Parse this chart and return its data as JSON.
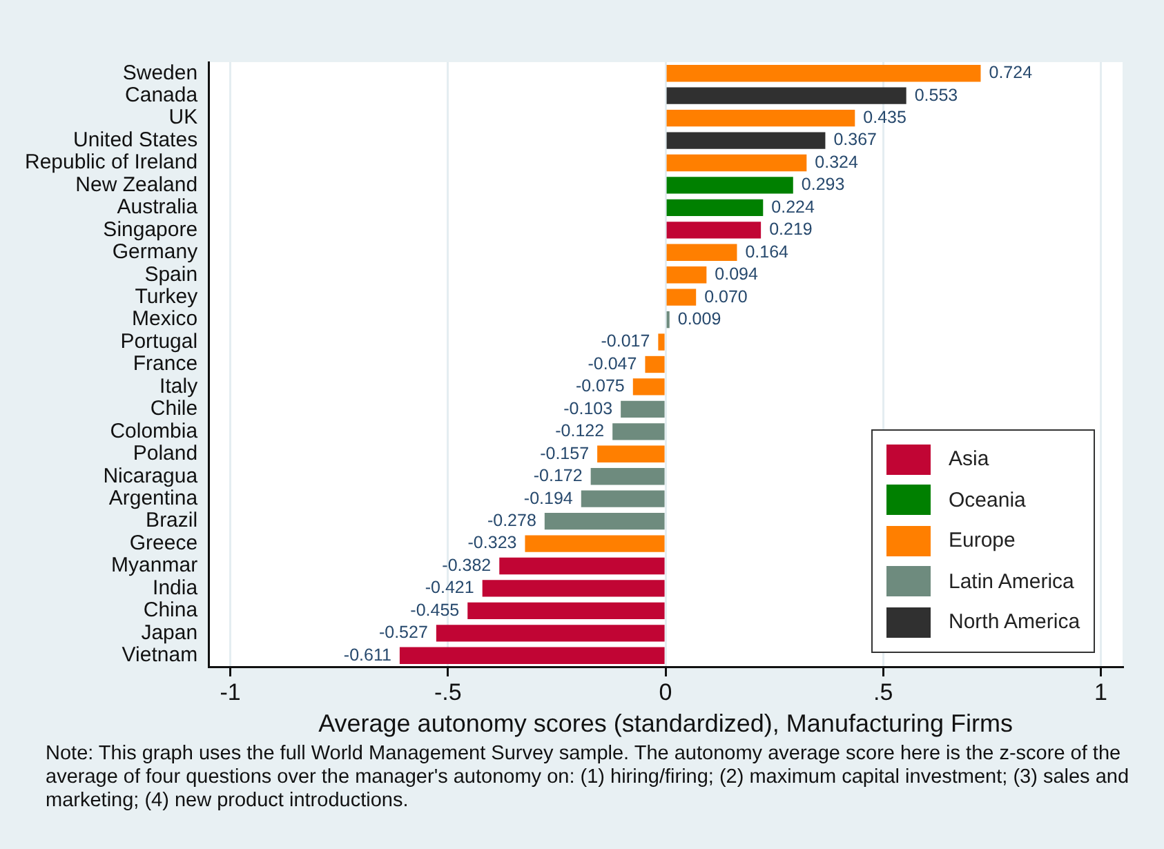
{
  "chart_data": {
    "type": "bar",
    "orientation": "horizontal",
    "stacked": true,
    "xlabel": "Average autonomy scores (standardized), Manufacturing Firms",
    "annotations": [
      "Note: This graph uses the full World Management Survey sample. The autonomy average score here is the z-score of the average of four questions over the manager's autonomy on: (1) hiring/firing; (2) maximum capital investment; (3) sales and marketing; (4) new product introductions."
    ],
    "categories": [
      "Sweden",
      "Canada",
      "UK",
      "United States",
      "Republic of Ireland",
      "New Zealand",
      "Australia",
      "Singapore",
      "Germany",
      "Spain",
      "Turkey",
      "Mexico",
      "Portugal",
      "France",
      "Italy",
      "Chile",
      "Colombia",
      "Poland",
      "Nicaragua",
      "Argentina",
      "Brazil",
      "Greece",
      "Myanmar",
      "India",
      "China",
      "Japan",
      "Vietnam"
    ],
    "series": [
      {
        "name": "Asia",
        "color": "#c10534",
        "values": [
          null,
          null,
          null,
          null,
          null,
          null,
          null,
          0.219,
          null,
          null,
          null,
          null,
          null,
          null,
          null,
          null,
          null,
          null,
          null,
          null,
          null,
          null,
          -0.382,
          -0.421,
          -0.455,
          -0.527,
          -0.611
        ],
        "value_labels": [
          null,
          null,
          null,
          null,
          null,
          null,
          null,
          "0.219",
          null,
          null,
          null,
          null,
          null,
          null,
          null,
          null,
          null,
          null,
          null,
          null,
          null,
          null,
          "-0.382",
          "-0.421",
          "-0.455",
          "-0.527",
          "-0.611"
        ]
      },
      {
        "name": "Oceania",
        "color": "#008000",
        "values": [
          null,
          null,
          null,
          null,
          null,
          0.293,
          0.224,
          null,
          null,
          null,
          null,
          null,
          null,
          null,
          null,
          null,
          null,
          null,
          null,
          null,
          null,
          null,
          null,
          null,
          null,
          null,
          null
        ],
        "value_labels": [
          null,
          null,
          null,
          null,
          null,
          "0.293",
          "0.224",
          null,
          null,
          null,
          null,
          null,
          null,
          null,
          null,
          null,
          null,
          null,
          null,
          null,
          null,
          null,
          null,
          null,
          null,
          null,
          null
        ]
      },
      {
        "name": "Europe",
        "color": "#ff7f00",
        "values": [
          0.724,
          null,
          0.435,
          null,
          0.324,
          null,
          null,
          null,
          0.164,
          0.094,
          0.07,
          null,
          -0.017,
          -0.047,
          -0.075,
          null,
          null,
          -0.157,
          null,
          null,
          null,
          -0.323,
          null,
          null,
          null,
          null,
          null
        ],
        "value_labels": [
          "0.724",
          null,
          "0.435",
          null,
          "0.324",
          null,
          null,
          null,
          "0.164",
          "0.094",
          "0.070",
          null,
          "-0.017",
          "-0.047",
          "-0.075",
          null,
          null,
          "-0.157",
          null,
          null,
          null,
          "-0.323",
          null,
          null,
          null,
          null,
          null
        ]
      },
      {
        "name": "Latin America",
        "color": "#6e8b7e",
        "values": [
          null,
          null,
          null,
          null,
          null,
          null,
          null,
          null,
          null,
          null,
          null,
          0.009,
          null,
          null,
          null,
          -0.103,
          -0.122,
          null,
          -0.172,
          -0.194,
          -0.278,
          null,
          null,
          null,
          null,
          null,
          null
        ],
        "value_labels": [
          null,
          null,
          null,
          null,
          null,
          null,
          null,
          null,
          null,
          null,
          null,
          "0.009",
          null,
          null,
          null,
          "-0.103",
          "-0.122",
          null,
          "-0.172",
          "-0.194",
          "-0.278",
          null,
          null,
          null,
          null,
          null,
          null
        ]
      },
      {
        "name": "North America",
        "color": "#303030",
        "values": [
          null,
          0.553,
          null,
          0.367,
          null,
          null,
          null,
          null,
          null,
          null,
          null,
          null,
          null,
          null,
          null,
          null,
          null,
          null,
          null,
          null,
          null,
          null,
          null,
          null,
          null,
          null,
          null
        ],
        "value_labels": [
          null,
          "0.553",
          null,
          "0.367",
          null,
          null,
          null,
          null,
          null,
          null,
          null,
          null,
          null,
          null,
          null,
          null,
          null,
          null,
          null,
          null,
          null,
          null,
          null,
          null,
          null,
          null,
          null
        ]
      }
    ],
    "xlim": [
      -1.05,
      1.05
    ],
    "xticks": [
      {
        "value": -1,
        "label": "-1"
      },
      {
        "value": -0.5,
        "label": "-.5"
      },
      0,
      {
        "value": 0.5,
        "label": ".5"
      },
      1
    ],
    "grid": "x",
    "legend": "bottom right"
  }
}
